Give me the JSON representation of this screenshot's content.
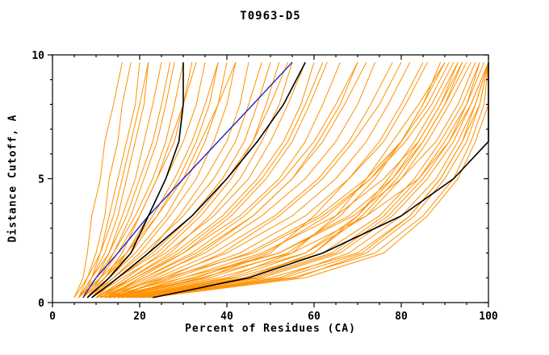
{
  "chart_data": {
    "type": "line",
    "title": "T0963-D5",
    "xlabel": "Percent of Residues (CA)",
    "ylabel": "Distance Cutoff, A",
    "xlim": [
      0,
      100
    ],
    "ylim": [
      0,
      10
    ],
    "x_major_ticks": [
      0,
      20,
      40,
      60,
      80,
      100
    ],
    "x_minor_step": 5,
    "y_major_ticks": [
      0,
      5,
      10
    ],
    "y_minor_step": 1,
    "grid": false,
    "legend": "none",
    "colors": {
      "model": "#ff9100",
      "highlight_blue": "#2222cc",
      "highlight_black": "#000000",
      "frame": "#000000"
    },
    "y_levels": [
      0.2,
      1,
      2,
      3.5,
      5,
      6.5,
      8,
      9.7
    ],
    "series": [
      {
        "name": "model-curve-orange",
        "color": "#ff9100",
        "width": 1,
        "curves": [
          [
            5,
            7,
            8,
            9,
            11,
            12,
            14,
            16
          ],
          [
            6,
            8,
            10,
            12,
            13,
            15,
            16,
            18
          ],
          [
            6,
            9,
            11,
            13,
            15,
            17,
            19,
            20
          ],
          [
            7,
            9,
            12,
            15,
            17,
            19,
            21,
            22
          ],
          [
            7,
            10,
            13,
            16,
            19,
            21,
            23,
            25
          ],
          [
            8,
            11,
            14,
            18,
            21,
            24,
            26,
            28
          ],
          [
            6,
            10,
            14,
            19,
            23,
            26,
            28,
            30
          ],
          [
            8,
            12,
            16,
            20,
            24,
            28,
            30,
            32
          ],
          [
            9,
            13,
            17,
            22,
            26,
            30,
            33,
            35
          ],
          [
            7,
            12,
            18,
            24,
            29,
            33,
            36,
            38
          ],
          [
            8,
            13,
            19,
            26,
            31,
            35,
            38,
            40
          ],
          [
            9,
            14,
            20,
            27,
            33,
            37,
            40,
            42
          ],
          [
            10,
            15,
            22,
            29,
            35,
            40,
            43,
            45
          ],
          [
            8,
            14,
            21,
            30,
            37,
            42,
            45,
            48
          ],
          [
            9,
            15,
            23,
            32,
            39,
            44,
            47,
            50
          ],
          [
            10,
            17,
            25,
            34,
            41,
            46,
            49,
            52
          ],
          [
            11,
            18,
            27,
            36,
            43,
            48,
            52,
            55
          ],
          [
            9,
            16,
            26,
            37,
            45,
            50,
            54,
            58
          ],
          [
            10,
            18,
            28,
            39,
            47,
            53,
            57,
            60
          ],
          [
            12,
            20,
            30,
            41,
            49,
            55,
            59,
            63
          ],
          [
            10,
            19,
            30,
            43,
            52,
            58,
            62,
            66
          ],
          [
            11,
            21,
            33,
            46,
            55,
            61,
            66,
            70
          ],
          [
            12,
            22,
            35,
            48,
            58,
            65,
            70,
            74
          ],
          [
            13,
            24,
            37,
            51,
            61,
            68,
            73,
            78
          ],
          [
            12,
            25,
            40,
            55,
            65,
            72,
            77,
            82
          ],
          [
            14,
            27,
            43,
            58,
            68,
            76,
            81,
            86
          ],
          [
            13,
            28,
            45,
            61,
            72,
            80,
            85,
            90
          ],
          [
            15,
            30,
            48,
            65,
            76,
            84,
            89,
            94
          ],
          [
            14,
            32,
            52,
            69,
            80,
            88,
            93,
            97
          ],
          [
            15,
            34,
            55,
            72,
            84,
            91,
            96,
            100
          ],
          [
            12,
            35,
            50,
            60,
            68,
            75,
            80,
            85
          ],
          [
            14,
            40,
            55,
            65,
            72,
            78,
            84,
            90
          ],
          [
            16,
            45,
            60,
            70,
            77,
            83,
            88,
            93
          ],
          [
            13,
            38,
            58,
            72,
            80,
            86,
            91,
            96
          ],
          [
            15,
            42,
            62,
            75,
            83,
            89,
            94,
            98
          ],
          [
            17,
            48,
            66,
            78,
            86,
            92,
            96,
            100
          ],
          [
            18,
            50,
            70,
            82,
            89,
            94,
            98,
            100
          ],
          [
            20,
            55,
            74,
            85,
            92,
            96,
            99,
            100
          ],
          [
            11,
            30,
            52,
            68,
            78,
            85,
            90,
            95
          ],
          [
            10,
            26,
            46,
            62,
            73,
            81,
            87,
            92
          ],
          [
            5,
            8,
            11,
            14,
            16,
            18,
            20,
            22
          ],
          [
            6,
            9,
            13,
            17,
            20,
            23,
            25,
            27
          ],
          [
            7,
            11,
            15,
            20,
            24,
            27,
            30,
            33
          ],
          [
            8,
            12,
            17,
            23,
            28,
            32,
            35,
            38
          ],
          [
            6,
            11,
            17,
            24,
            30,
            34,
            38,
            42
          ],
          [
            9,
            15,
            24,
            33,
            40,
            46,
            50,
            54
          ],
          [
            11,
            19,
            29,
            40,
            48,
            54,
            58,
            62
          ],
          [
            13,
            23,
            34,
            46,
            55,
            62,
            67,
            72
          ],
          [
            12,
            21,
            32,
            44,
            53,
            60,
            65,
            70
          ],
          [
            14,
            26,
            39,
            52,
            62,
            69,
            75,
            80
          ],
          [
            13,
            36,
            54,
            66,
            74,
            80,
            85,
            89
          ],
          [
            15,
            44,
            60,
            71,
            79,
            85,
            90,
            94
          ],
          [
            12,
            33,
            49,
            63,
            73,
            80,
            86,
            91
          ],
          [
            17,
            46,
            64,
            76,
            84,
            90,
            95,
            99
          ],
          [
            19,
            52,
            68,
            80,
            88,
            93,
            97,
            100
          ],
          [
            16,
            41,
            58,
            70,
            78,
            84,
            89,
            93
          ],
          [
            18,
            47,
            65,
            77,
            85,
            91,
            95,
            98
          ],
          [
            21,
            56,
            72,
            83,
            90,
            95,
            98,
            100
          ],
          [
            22,
            58,
            76,
            86,
            93,
            97,
            100,
            100
          ],
          [
            20,
            53,
            71,
            82,
            89,
            94,
            97,
            100
          ]
        ]
      },
      {
        "name": "highlight-curve-blue",
        "color": "#2222cc",
        "width": 1.4,
        "curves": [
          [
            7,
            10,
            15,
            22,
            30,
            38,
            46,
            55
          ]
        ]
      },
      {
        "name": "highlight-curve-black",
        "color": "#000000",
        "width": 1.6,
        "curves": [
          [
            8,
            13,
            18,
            22,
            26,
            29,
            30,
            30
          ],
          [
            9,
            15,
            22,
            32,
            40,
            47,
            53,
            58
          ],
          [
            23,
            45,
            62,
            80,
            92,
            100,
            100,
            100
          ]
        ]
      }
    ]
  }
}
